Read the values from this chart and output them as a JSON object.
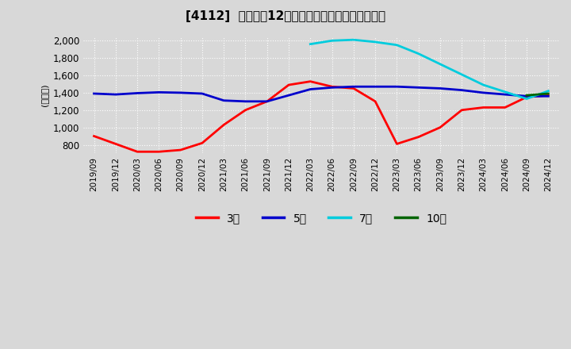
{
  "title": "[4112]  経常利益12か月移動合計の標準偏差の推移",
  "ylabel": "(百万円)",
  "ylim": [
    700,
    2050
  ],
  "yticks": [
    800,
    1000,
    1200,
    1400,
    1600,
    1800,
    2000
  ],
  "bg_color": "#d8d8d8",
  "grid_color": "#ffffff",
  "series": {
    "3年": {
      "color": "#ff0000",
      "data": [
        [
          "2019-09",
          900
        ],
        [
          "2019-12",
          810
        ],
        [
          "2020-03",
          720
        ],
        [
          "2020-06",
          720
        ],
        [
          "2020-09",
          740
        ],
        [
          "2020-12",
          820
        ],
        [
          "2021-03",
          1030
        ],
        [
          "2021-06",
          1200
        ],
        [
          "2021-09",
          1300
        ],
        [
          "2021-12",
          1490
        ],
        [
          "2022-03",
          1530
        ],
        [
          "2022-06",
          1470
        ],
        [
          "2022-09",
          1450
        ],
        [
          "2022-12",
          1300
        ],
        [
          "2023-03",
          810
        ],
        [
          "2023-06",
          890
        ],
        [
          "2023-09",
          1000
        ],
        [
          "2023-12",
          1200
        ],
        [
          "2024-03",
          1230
        ],
        [
          "2024-06",
          1230
        ],
        [
          "2024-09",
          1350
        ],
        [
          "2024-12",
          1370
        ]
      ]
    },
    "5年": {
      "color": "#0000cc",
      "data": [
        [
          "2019-09",
          1390
        ],
        [
          "2019-12",
          1380
        ],
        [
          "2020-03",
          1395
        ],
        [
          "2020-06",
          1405
        ],
        [
          "2020-09",
          1400
        ],
        [
          "2020-12",
          1390
        ],
        [
          "2021-03",
          1310
        ],
        [
          "2021-06",
          1300
        ],
        [
          "2021-09",
          1300
        ],
        [
          "2021-12",
          1370
        ],
        [
          "2022-03",
          1440
        ],
        [
          "2022-06",
          1460
        ],
        [
          "2022-09",
          1470
        ],
        [
          "2022-12",
          1470
        ],
        [
          "2023-03",
          1470
        ],
        [
          "2023-06",
          1460
        ],
        [
          "2023-09",
          1450
        ],
        [
          "2023-12",
          1430
        ],
        [
          "2024-03",
          1400
        ],
        [
          "2024-06",
          1380
        ],
        [
          "2024-09",
          1360
        ],
        [
          "2024-12",
          1360
        ]
      ]
    },
    "7年": {
      "color": "#00ccdd",
      "data": [
        [
          "2019-09",
          null
        ],
        [
          "2019-12",
          null
        ],
        [
          "2020-03",
          null
        ],
        [
          "2020-06",
          null
        ],
        [
          "2020-09",
          null
        ],
        [
          "2020-12",
          null
        ],
        [
          "2021-03",
          null
        ],
        [
          "2021-06",
          null
        ],
        [
          "2021-09",
          null
        ],
        [
          "2021-12",
          null
        ],
        [
          "2022-03",
          1960
        ],
        [
          "2022-06",
          2000
        ],
        [
          "2022-09",
          2010
        ],
        [
          "2022-12",
          1985
        ],
        [
          "2023-03",
          1950
        ],
        [
          "2023-06",
          1850
        ],
        [
          "2023-09",
          1730
        ],
        [
          "2023-12",
          1610
        ],
        [
          "2024-03",
          1490
        ],
        [
          "2024-06",
          1410
        ],
        [
          "2024-09",
          1330
        ],
        [
          "2024-12",
          1420
        ]
      ]
    },
    "10年": {
      "color": "#006400",
      "data": [
        [
          "2019-09",
          null
        ],
        [
          "2019-12",
          null
        ],
        [
          "2020-03",
          null
        ],
        [
          "2020-06",
          null
        ],
        [
          "2020-09",
          null
        ],
        [
          "2020-12",
          null
        ],
        [
          "2021-03",
          null
        ],
        [
          "2021-06",
          null
        ],
        [
          "2021-09",
          null
        ],
        [
          "2021-12",
          null
        ],
        [
          "2022-03",
          null
        ],
        [
          "2022-06",
          null
        ],
        [
          "2022-09",
          null
        ],
        [
          "2022-12",
          null
        ],
        [
          "2023-03",
          null
        ],
        [
          "2023-06",
          null
        ],
        [
          "2023-09",
          null
        ],
        [
          "2023-12",
          null
        ],
        [
          "2024-03",
          null
        ],
        [
          "2024-06",
          null
        ],
        [
          "2024-09",
          1370
        ],
        [
          "2024-12",
          1390
        ]
      ]
    }
  },
  "xtick_labels": [
    "2019/09",
    "2019/12",
    "2020/03",
    "2020/06",
    "2020/09",
    "2020/12",
    "2021/03",
    "2021/06",
    "2021/09",
    "2021/12",
    "2022/03",
    "2022/06",
    "2022/09",
    "2022/12",
    "2023/03",
    "2023/06",
    "2023/09",
    "2023/12",
    "2024/03",
    "2024/06",
    "2024/09",
    "2024/12"
  ],
  "legend_labels": [
    "3年",
    "5年",
    "7年",
    "10年"
  ],
  "legend_colors": [
    "#ff0000",
    "#0000cc",
    "#00ccdd",
    "#006400"
  ]
}
